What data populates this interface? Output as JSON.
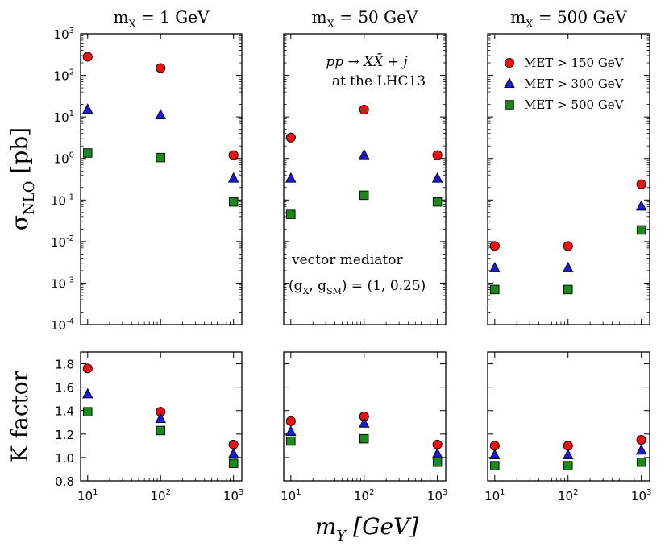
{
  "figure": {
    "xlabel": "m_Y [GeV]",
    "ylabel_top": "σ_NLO [pb]",
    "ylabel_bottom": "K factor",
    "process_line1": "pp → XX̄ + j",
    "process_line2": "at the LHC13",
    "mediator_line1": "vector mediator",
    "mediator_line2": "(g_X, g_SM) = (1, 0.25)"
  },
  "chart_data": [
    {
      "type": "scatter",
      "title": "m_X = 1 GeV",
      "xscale": "log",
      "xlim": [
        8,
        1300
      ],
      "xticks": [
        "10^1",
        "10^2",
        "10^3"
      ],
      "panels": {
        "cross_section": {
          "ylabel": "σ_NLO [pb]",
          "yscale": "log",
          "ylim": [
            0.0001,
            1000
          ],
          "yticks": [
            "10^3",
            "10^2",
            "10^1",
            "10^0",
            "10^-1",
            "10^-2",
            "10^-3",
            "10^-4"
          ],
          "x": [
            10,
            100,
            1000
          ],
          "series": [
            {
              "name": "MET > 150 GeV",
              "values": [
                280,
                150,
                1.2
              ]
            },
            {
              "name": "MET > 300 GeV",
              "values": [
                15,
                11,
                0.33
              ]
            },
            {
              "name": "MET > 500 GeV",
              "values": [
                1.35,
                1.05,
                0.09
              ]
            }
          ]
        },
        "k_factor": {
          "ylabel": "K factor",
          "yscale": "linear",
          "ylim": [
            0.8,
            1.9
          ],
          "yticks": [
            "1.8",
            "1.6",
            "1.4",
            "1.2",
            "1.0",
            "0.8"
          ],
          "x": [
            10,
            100,
            1000
          ],
          "series": [
            {
              "name": "MET > 150 GeV",
              "values": [
                1.76,
                1.39,
                1.11
              ]
            },
            {
              "name": "MET > 300 GeV",
              "values": [
                1.54,
                1.33,
                1.03
              ]
            },
            {
              "name": "MET > 500 GeV",
              "values": [
                1.39,
                1.23,
                0.95
              ]
            }
          ]
        }
      }
    },
    {
      "type": "scatter",
      "title": "m_X = 50 GeV",
      "xscale": "log",
      "xlim": [
        8,
        1300
      ],
      "xticks": [
        "10^1",
        "10^2",
        "10^3"
      ],
      "panels": {
        "cross_section": {
          "yscale": "log",
          "ylim": [
            0.0001,
            1000
          ],
          "x": [
            10,
            100,
            1000
          ],
          "series": [
            {
              "name": "MET > 150 GeV",
              "values": [
                3.2,
                15,
                1.2
              ]
            },
            {
              "name": "MET > 300 GeV",
              "values": [
                0.33,
                1.2,
                0.33
              ]
            },
            {
              "name": "MET > 500 GeV",
              "values": [
                0.045,
                0.13,
                0.09
              ]
            }
          ]
        },
        "k_factor": {
          "yscale": "linear",
          "ylim": [
            0.8,
            1.9
          ],
          "x": [
            10,
            100,
            1000
          ],
          "series": [
            {
              "name": "MET > 150 GeV",
              "values": [
                1.31,
                1.35,
                1.11
              ]
            },
            {
              "name": "MET > 300 GeV",
              "values": [
                1.22,
                1.29,
                1.03
              ]
            },
            {
              "name": "MET > 500 GeV",
              "values": [
                1.14,
                1.16,
                0.96
              ]
            }
          ]
        }
      }
    },
    {
      "type": "scatter",
      "title": "m_X = 500 GeV",
      "xscale": "log",
      "xlim": [
        8,
        1300
      ],
      "xticks": [
        "10^1",
        "10^2",
        "10^3"
      ],
      "panels": {
        "cross_section": {
          "yscale": "log",
          "ylim": [
            0.0001,
            1000
          ],
          "x": [
            10,
            100,
            1000
          ],
          "series": [
            {
              "name": "MET > 150 GeV",
              "values": [
                0.0078,
                0.0078,
                0.24
              ]
            },
            {
              "name": "MET > 300 GeV",
              "values": [
                0.0023,
                0.0023,
                0.07
              ]
            },
            {
              "name": "MET > 500 GeV",
              "values": [
                0.0007,
                0.0007,
                0.019
              ]
            }
          ]
        },
        "k_factor": {
          "yscale": "linear",
          "ylim": [
            0.8,
            1.9
          ],
          "x": [
            10,
            100,
            1000
          ],
          "series": [
            {
              "name": "MET > 150 GeV",
              "values": [
                1.1,
                1.1,
                1.15
              ]
            },
            {
              "name": "MET > 300 GeV",
              "values": [
                1.02,
                1.02,
                1.06
              ]
            },
            {
              "name": "MET > 500 GeV",
              "values": [
                0.93,
                0.93,
                0.96
              ]
            }
          ]
        }
      }
    }
  ],
  "legend": {
    "placement": "top-right",
    "entries": [
      {
        "label": "MET > 150 GeV",
        "marker": "circle",
        "color": "#ee1111"
      },
      {
        "label": "MET > 300 GeV",
        "marker": "triangle",
        "color": "#1a1ad6"
      },
      {
        "label": "MET > 500 GeV",
        "marker": "square",
        "color": "#1a8a1a"
      }
    ]
  }
}
